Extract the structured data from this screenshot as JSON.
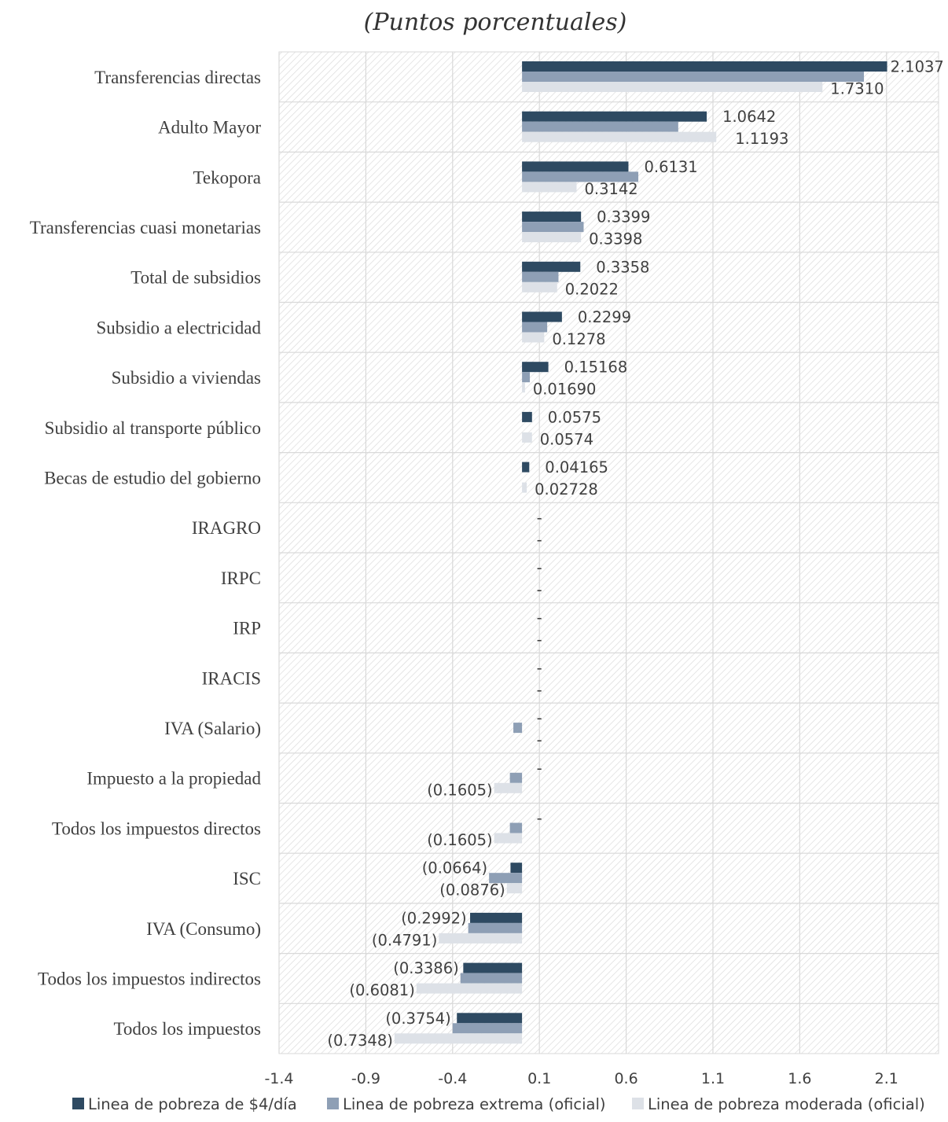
{
  "chart_data": {
    "type": "bar",
    "orientation": "horizontal",
    "subtitle": "(Puntos porcentuales)",
    "categories": [
      "Transferencias directas",
      "Adulto Mayor",
      "Tekopora",
      "Transferencias cuasi monetarias",
      "Total de subsidios",
      "Subsidio a electricidad",
      "Subsidio a viviendas",
      "Subsidio al transporte público",
      "Becas de estudio del gobierno",
      "IRAGRO",
      "IRPC",
      "IRP",
      "IRACIS",
      "IVA (Salario)",
      "Impuesto a la propiedad",
      "Todos los impuestos directos",
      "ISC",
      "IVA (Consumo)",
      "Todos los impuestos indirectos",
      "Todos los impuestos"
    ],
    "series": [
      {
        "name": "Linea de pobreza de $4/día",
        "color": "#2e4a62",
        "values": [
          2.1037,
          1.0642,
          0.6131,
          0.3399,
          0.3358,
          0.2299,
          0.15168,
          0.0575,
          0.04165,
          0,
          0,
          0,
          0,
          0,
          0,
          0,
          -0.0664,
          -0.2992,
          -0.3386,
          -0.3754
        ],
        "labels": [
          "2.1037",
          "1.0642",
          "0.6131",
          "0.3399",
          "0.3358",
          "0.2299",
          "0.15168",
          "0.0575",
          "0.04165",
          "-",
          "-",
          "-",
          "-",
          "-",
          "-",
          "-",
          "(0.0664)",
          "(0.2992)",
          "(0.3386)",
          "(0.3754)"
        ]
      },
      {
        "name": "Linea de pobreza extrema (oficial)",
        "color": "#8e9fb5",
        "values": [
          1.97,
          0.9,
          0.67,
          0.355,
          0.21,
          0.145,
          0.045,
          0,
          0,
          0,
          0,
          0,
          0,
          -0.05,
          -0.07,
          -0.07,
          -0.19,
          -0.31,
          -0.355,
          -0.4
        ],
        "labels": []
      },
      {
        "name": "Linea de pobreza moderada (oficial)",
        "color": "#dde1e7",
        "values": [
          1.731,
          1.1193,
          0.3142,
          0.3398,
          0.2022,
          0.1278,
          0.0169,
          0.0574,
          0.02728,
          0,
          0,
          0,
          0,
          0,
          -0.1605,
          -0.1605,
          -0.0876,
          -0.4791,
          -0.6081,
          -0.7348
        ],
        "labels": [
          "1.7310",
          "1.1193",
          "0.3142",
          "0.3398",
          "0.2022",
          "0.1278",
          "0.01690",
          "0.0574",
          "0.02728",
          "-",
          "-",
          "-",
          "-",
          "-",
          "(0.1605)",
          "(0.1605)",
          "(0.0876)",
          "(0.4791)",
          "(0.6081)",
          "(0.7348)"
        ]
      }
    ],
    "xticks": [
      "-1.4",
      "-0.9",
      "-0.4",
      "0.1",
      "0.6",
      "1.1",
      "1.6",
      "2.1"
    ],
    "xlim": [
      -1.4,
      2.4
    ],
    "grid": true,
    "legend_position": "bottom"
  }
}
